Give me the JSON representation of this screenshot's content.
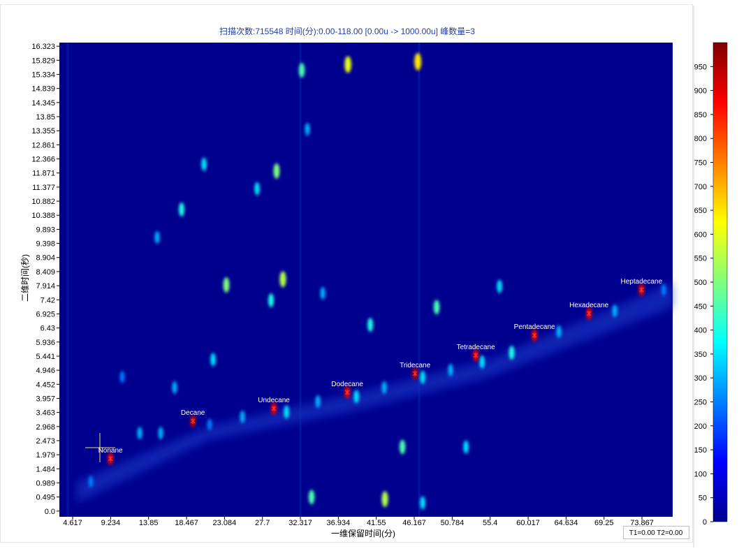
{
  "chart_data": {
    "type": "heatmap",
    "title": "扫描次数:715548 时间(分):0.00-118.00 [0.00u -> 1000.00u] 峰数量=3",
    "x_label": "一维保留时间(分)",
    "y_label": "二维时间(秒)",
    "status": "T1=0.00 T2=0.00",
    "xlim": [
      3.0,
      77.6
    ],
    "xticks": [
      4.617,
      9.234,
      13.85,
      18.467,
      23.084,
      27.7,
      32.317,
      36.934,
      41.55,
      46.167,
      50.784,
      55.4,
      60.017,
      64.634,
      69.25,
      73.867
    ],
    "ylim": [
      -0.2,
      16.45
    ],
    "yticks": [
      {
        "value": 0,
        "label": "0.0"
      },
      0.495,
      0.989,
      1.484,
      1.979,
      2.473,
      2.968,
      3.463,
      3.957,
      4.452,
      4.946,
      5.441,
      5.936,
      6.43,
      6.925,
      7.42,
      7.914,
      8.409,
      8.904,
      9.398,
      9.893,
      10.388,
      10.882,
      11.377,
      11.871,
      12.366,
      12.861,
      13.355,
      13.85,
      14.345,
      14.839,
      15.334,
      15.829,
      16.323
    ],
    "clim": [
      0,
      1000
    ],
    "cticks": [
      0,
      50,
      100,
      150,
      200,
      250,
      300,
      350,
      400,
      450,
      500,
      550,
      600,
      650,
      700,
      750,
      800,
      850,
      900,
      950
    ],
    "colormap": "jet",
    "peaks": {
      "names": [
        "Nonane",
        "Decane",
        "Undecane",
        "Dodecane",
        "Tridecane",
        "Tetradecane",
        "Pentadecane",
        "Hexadecane",
        "Heptadecane"
      ],
      "x": [
        9.21,
        19.24,
        29.09,
        38.02,
        46.26,
        53.65,
        60.79,
        67.42,
        73.8
      ],
      "y": [
        1.84,
        3.16,
        3.6,
        4.17,
        4.83,
        5.47,
        6.17,
        6.94,
        7.77
      ],
      "values": [
        900,
        950,
        900,
        900,
        950,
        900,
        900,
        900,
        900
      ]
    },
    "spots": {
      "x": [
        15.33,
        21.28,
        25.27,
        30.63,
        34.45,
        39.13,
        42.52,
        47.19,
        50.59,
        54.42,
        58.02,
        63.76,
        70.56,
        76.51,
        32.49,
        38.1,
        46.6,
        29.42,
        20.59,
        17.87,
        14.9,
        23.31,
        28.75,
        30.19,
        35.04,
        40.82,
        48.89,
        56.54,
        44.73,
        52.46,
        33.68,
        42.6,
        47.19,
        17.02,
        21.7,
        33.17,
        27.05,
        10.65,
        6.83,
        12.78
      ],
      "y": [
        2.74,
        3.04,
        3.31,
        3.48,
        3.85,
        4.02,
        4.34,
        4.7,
        4.95,
        5.24,
        5.56,
        6.3,
        7.03,
        7.77,
        15.48,
        15.68,
        15.78,
        11.94,
        12.18,
        10.59,
        9.61,
        7.94,
        7.4,
        8.14,
        7.65,
        6.54,
        7.16,
        7.89,
        2.25,
        2.25,
        0.49,
        0.42,
        0.29,
        4.34,
        5.32,
        13.41,
        11.32,
        4.71,
        1.03,
        2.74
      ],
      "values": [
        300,
        250,
        300,
        350,
        300,
        350,
        300,
        350,
        300,
        350,
        400,
        300,
        300,
        250,
        450,
        600,
        650,
        500,
        350,
        400,
        300,
        500,
        400,
        550,
        300,
        400,
        450,
        350,
        450,
        350,
        450,
        550,
        350,
        300,
        350,
        300,
        350,
        250,
        250,
        300
      ]
    }
  }
}
